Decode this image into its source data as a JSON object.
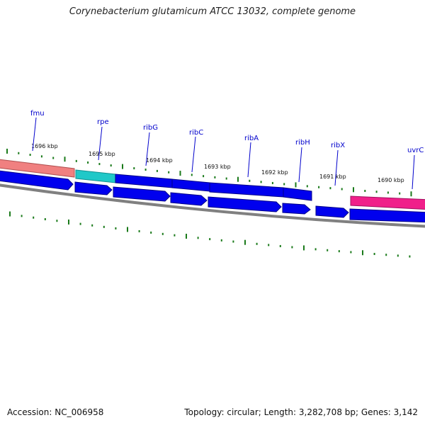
{
  "title": "Corynebacterium glutamicum ATCC 13032, complete genome",
  "footer": {
    "accession": "Accession: NC_006958",
    "topology": "Topology: circular; Length: 3,282,708 bp; Genes: 3,142"
  },
  "colors": {
    "forward_gene": "#0000ee",
    "fmu_gene": "#f08080",
    "rpe_gene": "#20c8c8",
    "uvrC_gene": "#f0208a",
    "backbone": "#808080",
    "ticks": "#1a7a1a",
    "label": "#0000cc"
  },
  "kbp_labels": [
    "1696 kbp",
    "1695 kbp",
    "1694 kbp",
    "1693 kbp",
    "1692 kbp",
    "1691 kbp",
    "1690 kbp"
  ],
  "gene_labels": [
    "fmu",
    "rpe",
    "ribG",
    "ribC",
    "ribA",
    "ribH",
    "ribX",
    "uvrC"
  ]
}
